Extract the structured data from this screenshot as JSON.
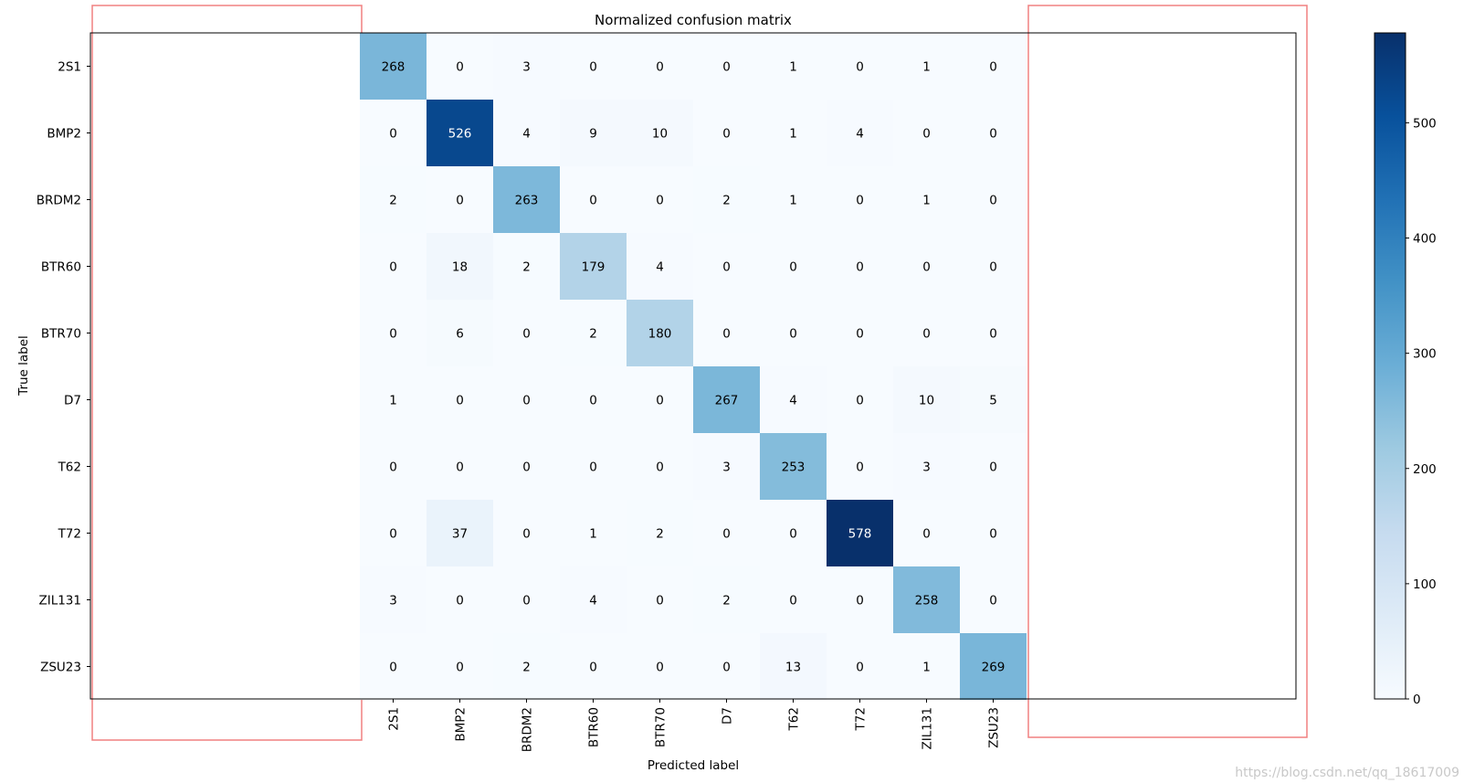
{
  "chart_data": {
    "type": "heatmap",
    "title": "Normalized confusion matrix",
    "xlabel": "Predicted label",
    "ylabel": "True label",
    "categories": [
      "2S1",
      "BMP2",
      "BRDM2",
      "BTR60",
      "BTR70",
      "D7",
      "T62",
      "T72",
      "ZIL131",
      "ZSU23"
    ],
    "rows": [
      "2S1",
      "BMP2",
      "BRDM2",
      "BTR60",
      "BTR70",
      "D7",
      "T62",
      "T72",
      "ZIL131",
      "ZSU23"
    ],
    "values": [
      [
        268,
        0,
        3,
        0,
        0,
        0,
        1,
        0,
        1,
        0
      ],
      [
        0,
        526,
        4,
        9,
        10,
        0,
        1,
        4,
        0,
        0
      ],
      [
        2,
        0,
        263,
        0,
        0,
        2,
        1,
        0,
        1,
        0
      ],
      [
        0,
        18,
        2,
        179,
        4,
        0,
        0,
        0,
        0,
        0
      ],
      [
        0,
        6,
        0,
        2,
        180,
        0,
        0,
        0,
        0,
        0
      ],
      [
        1,
        0,
        0,
        0,
        0,
        267,
        4,
        0,
        10,
        5
      ],
      [
        0,
        0,
        0,
        0,
        0,
        3,
        253,
        0,
        3,
        0
      ],
      [
        0,
        37,
        0,
        1,
        2,
        0,
        0,
        578,
        0,
        0
      ],
      [
        3,
        0,
        0,
        4,
        0,
        2,
        0,
        0,
        258,
        0
      ],
      [
        0,
        0,
        2,
        0,
        0,
        0,
        13,
        0,
        1,
        269
      ]
    ],
    "colorbar": {
      "min": 0,
      "max": 578,
      "ticks": [
        0,
        100,
        200,
        300,
        400,
        500
      ]
    },
    "colormap": "Blues",
    "grid": false
  },
  "watermark": "https://blog.csdn.net/qq_18617009",
  "highlight_color": "#f08080"
}
